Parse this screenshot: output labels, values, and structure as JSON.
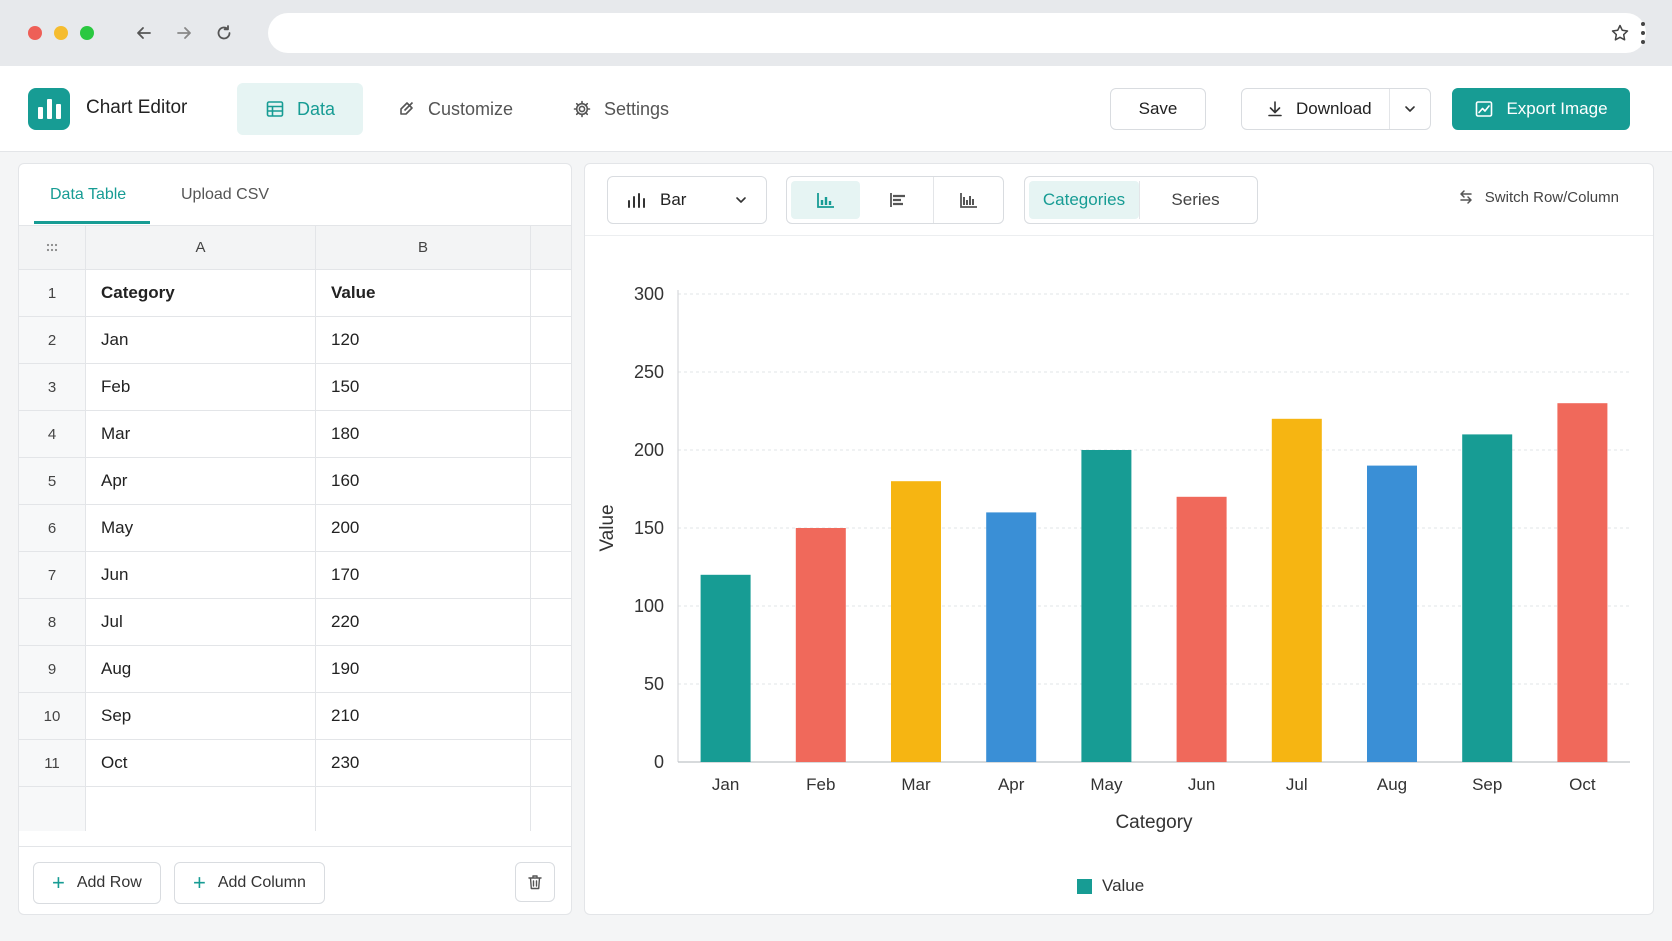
{
  "app": {
    "title": "Chart Editor"
  },
  "top_tabs": [
    {
      "label": "Data",
      "icon": "table-icon",
      "active": true
    },
    {
      "label": "Customize",
      "icon": "brush-icon",
      "active": false
    },
    {
      "label": "Settings",
      "icon": "gear-icon",
      "active": false
    }
  ],
  "actions": {
    "save": "Save",
    "download": "Download",
    "export": "Export Image"
  },
  "left_panel": {
    "tabs": [
      {
        "label": "Data Table",
        "active": true
      },
      {
        "label": "Upload CSV",
        "active": false
      }
    ],
    "columns": [
      "A",
      "B"
    ],
    "rows": [
      {
        "index": "1",
        "a": "Category",
        "b": "Value"
      },
      {
        "index": "2",
        "a": "Jan",
        "b": "120"
      },
      {
        "index": "3",
        "a": "Feb",
        "b": "150"
      },
      {
        "index": "4",
        "a": "Mar",
        "b": "180"
      },
      {
        "index": "5",
        "a": "Apr",
        "b": "160"
      },
      {
        "index": "6",
        "a": "May",
        "b": "200"
      },
      {
        "index": "7",
        "a": "Jun",
        "b": "170"
      },
      {
        "index": "8",
        "a": "Jul",
        "b": "220"
      },
      {
        "index": "9",
        "a": "Aug",
        "b": "190"
      },
      {
        "index": "10",
        "a": "Sep",
        "b": "210"
      },
      {
        "index": "11",
        "a": "Oct",
        "b": "230"
      }
    ],
    "footer": {
      "add_row": "Add Row",
      "add_column": "Add Column"
    }
  },
  "toolbar": {
    "chart_type": "Bar",
    "segments": [
      {
        "label": "Categories",
        "active": true
      },
      {
        "label": "Series",
        "active": false
      }
    ],
    "switch_label": "Switch Row/Column"
  },
  "colors": {
    "accent": "#179c94",
    "bar_palette": [
      "#179c94",
      "#f0695b",
      "#f6b512",
      "#3a8fd6"
    ]
  },
  "chart_data": {
    "type": "bar",
    "categories": [
      "Jan",
      "Feb",
      "Mar",
      "Apr",
      "May",
      "Jun",
      "Jul",
      "Aug",
      "Sep",
      "Oct"
    ],
    "series": [
      {
        "name": "Value",
        "values": [
          120,
          150,
          180,
          160,
          200,
          170,
          220,
          190,
          210,
          230
        ]
      }
    ],
    "bar_colors": [
      "#179c94",
      "#f0695b",
      "#f6b512",
      "#3a8fd6",
      "#179c94",
      "#f0695b",
      "#f6b512",
      "#3a8fd6",
      "#179c94",
      "#f0695b"
    ],
    "title": "",
    "xlabel": "Category",
    "ylabel": "Value",
    "ylim": [
      0,
      300
    ],
    "yticks": [
      0,
      50,
      100,
      150,
      200,
      250,
      300
    ],
    "grid": true,
    "legend": "bottom-center"
  }
}
